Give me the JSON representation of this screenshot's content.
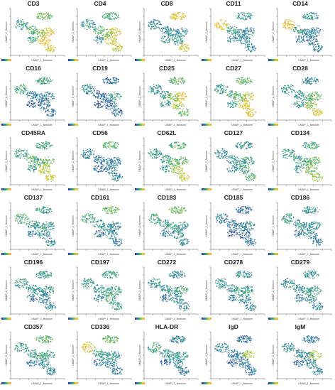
{
  "chart_data": {
    "type": "scatter",
    "xlabel": "UMAP_1_flowsom",
    "ylabel": "UMAP_2_flowsom",
    "colormap": [
      "#2b2d84",
      "#2f6fb0",
      "#23a38a",
      "#79c24a",
      "#e8d233",
      "#f0a528"
    ],
    "markers": [
      {
        "name": "CD3",
        "cluster_levels": [
          0.55,
          0.4,
          0.45,
          0.55,
          0.85,
          0.9,
          0.8,
          0.45
        ]
      },
      {
        "name": "CD4",
        "cluster_levels": [
          0.45,
          0.4,
          0.45,
          0.55,
          0.85,
          0.8,
          0.75,
          0.35
        ]
      },
      {
        "name": "CD8",
        "cluster_levels": [
          0.85,
          0.3,
          0.3,
          0.35,
          0.3,
          0.4,
          0.8,
          0.35
        ]
      },
      {
        "name": "CD11",
        "cluster_levels": [
          0.35,
          0.85,
          0.4,
          0.35,
          0.3,
          0.3,
          0.3,
          0.3
        ]
      },
      {
        "name": "CD14",
        "cluster_levels": [
          0.35,
          0.9,
          0.4,
          0.3,
          0.25,
          0.25,
          0.25,
          0.3
        ]
      },
      {
        "name": "CD16",
        "cluster_levels": [
          0.45,
          0.45,
          0.3,
          0.25,
          0.25,
          0.2,
          0.2,
          0.15
        ]
      },
      {
        "name": "CD19",
        "cluster_levels": [
          0.2,
          0.3,
          0.15,
          0.2,
          0.45,
          0.2,
          0.2,
          0.15
        ]
      },
      {
        "name": "CD25",
        "cluster_levels": [
          0.5,
          0.35,
          0.4,
          0.6,
          0.85,
          0.7,
          0.55,
          0.35
        ]
      },
      {
        "name": "CD27",
        "cluster_levels": [
          0.55,
          0.4,
          0.45,
          0.55,
          0.75,
          0.85,
          0.9,
          0.4
        ]
      },
      {
        "name": "CD28",
        "cluster_levels": [
          0.3,
          0.4,
          0.35,
          0.45,
          0.55,
          0.65,
          0.85,
          0.35
        ]
      },
      {
        "name": "CD45RA",
        "cluster_levels": [
          0.45,
          0.4,
          0.5,
          0.45,
          0.6,
          0.75,
          0.8,
          0.4
        ]
      },
      {
        "name": "CD56",
        "cluster_levels": [
          0.5,
          0.3,
          0.25,
          0.25,
          0.25,
          0.25,
          0.3,
          0.2
        ]
      },
      {
        "name": "CD62L",
        "cluster_levels": [
          0.5,
          0.4,
          0.4,
          0.5,
          0.55,
          0.7,
          0.8,
          0.35
        ]
      },
      {
        "name": "CD127",
        "cluster_levels": [
          0.35,
          0.35,
          0.35,
          0.4,
          0.4,
          0.45,
          0.5,
          0.3
        ]
      },
      {
        "name": "CD134",
        "cluster_levels": [
          0.45,
          0.4,
          0.4,
          0.45,
          0.55,
          0.6,
          0.7,
          0.4
        ]
      },
      {
        "name": "CD137",
        "cluster_levels": [
          0.4,
          0.45,
          0.4,
          0.4,
          0.4,
          0.35,
          0.3,
          0.25
        ]
      },
      {
        "name": "CD161",
        "cluster_levels": [
          0.55,
          0.4,
          0.35,
          0.35,
          0.3,
          0.3,
          0.25,
          0.2
        ]
      },
      {
        "name": "CD183",
        "cluster_levels": [
          0.55,
          0.45,
          0.4,
          0.4,
          0.35,
          0.35,
          0.3,
          0.25
        ]
      },
      {
        "name": "CD185",
        "cluster_levels": [
          0.2,
          0.25,
          0.25,
          0.25,
          0.3,
          0.2,
          0.2,
          0.15
        ]
      },
      {
        "name": "CD186",
        "cluster_levels": [
          0.35,
          0.4,
          0.35,
          0.35,
          0.35,
          0.3,
          0.25,
          0.2
        ]
      },
      {
        "name": "CD196",
        "cluster_levels": [
          0.35,
          0.4,
          0.35,
          0.35,
          0.35,
          0.3,
          0.3,
          0.2
        ]
      },
      {
        "name": "CD197",
        "cluster_levels": [
          0.4,
          0.4,
          0.4,
          0.45,
          0.4,
          0.45,
          0.4,
          0.3
        ]
      },
      {
        "name": "CD272",
        "cluster_levels": [
          0.3,
          0.35,
          0.35,
          0.4,
          0.45,
          0.35,
          0.3,
          0.25
        ]
      },
      {
        "name": "CD278",
        "cluster_levels": [
          0.35,
          0.35,
          0.35,
          0.4,
          0.4,
          0.35,
          0.3,
          0.25
        ]
      },
      {
        "name": "CD279",
        "cluster_levels": [
          0.35,
          0.35,
          0.35,
          0.4,
          0.4,
          0.35,
          0.3,
          0.25
        ]
      },
      {
        "name": "CD357",
        "cluster_levels": [
          0.5,
          0.4,
          0.4,
          0.45,
          0.4,
          0.35,
          0.3,
          0.25
        ]
      },
      {
        "name": "CD336",
        "cluster_levels": [
          0.55,
          0.85,
          0.4,
          0.4,
          0.35,
          0.3,
          0.25,
          0.25
        ]
      },
      {
        "name": "HLA-DR",
        "cluster_levels": [
          0.3,
          0.4,
          0.35,
          0.35,
          0.4,
          0.3,
          0.25,
          0.2
        ]
      },
      {
        "name": "IgD",
        "cluster_levels": [
          0.2,
          0.3,
          0.25,
          0.25,
          0.7,
          0.25,
          0.25,
          0.15
        ]
      },
      {
        "name": "IgM",
        "cluster_levels": [
          0.25,
          0.35,
          0.3,
          0.3,
          0.7,
          0.3,
          0.25,
          0.2
        ]
      }
    ]
  }
}
